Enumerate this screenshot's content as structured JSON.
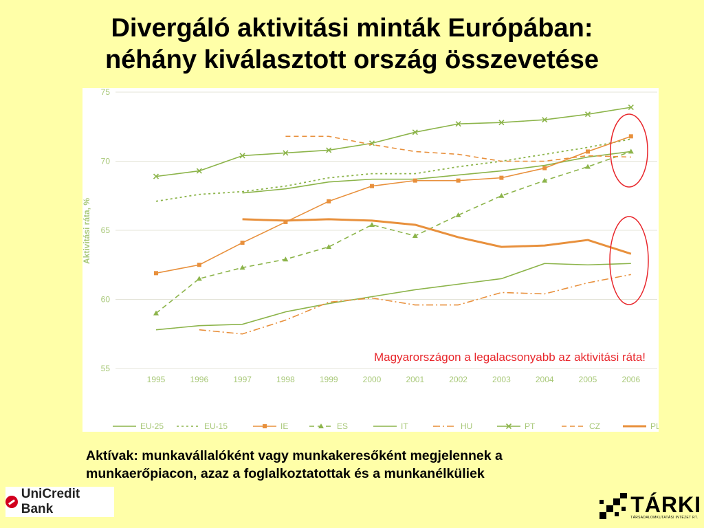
{
  "title": {
    "line1": "Divergáló aktivitási minták Európában:",
    "line2": "néhány kiválasztott ország összevetése"
  },
  "annotation": "Magyarországon a legalacsonyabb az aktivitási ráta!",
  "note": {
    "line1": "Aktívak: munkavállalóként vagy munkakeresőként megjelennek a",
    "line2": "munkaerőpiacon, azaz a foglalkoztatottak és a munkanélküliek"
  },
  "logos": {
    "left": "UniCredit Bank",
    "right": "TÁRKI",
    "right_sub": "TÁRSADALOMKUTATÁSI INTÉZET RT."
  },
  "colors": {
    "green": "#8cb44a",
    "orange": "#e8903c",
    "axis_text": "#a8c878",
    "grid": "#e4e4d8",
    "highlight": "#e8262b"
  },
  "chart_data": {
    "type": "line",
    "title": "",
    "xlabel": "",
    "ylabel": "Aktivitási ráta, %",
    "ylim": [
      55,
      75
    ],
    "yticks": [
      55,
      60,
      65,
      70,
      75
    ],
    "grid": true,
    "legend": "bottom",
    "x": [
      "1995",
      "1996",
      "1997",
      "1998",
      "1999",
      "2000",
      "2001",
      "2002",
      "2003",
      "2004",
      "2005",
      "2006"
    ],
    "series": [
      {
        "name": "EU-25",
        "color": "green",
        "style": "solid",
        "marker": "none",
        "values": [
          null,
          null,
          67.7,
          68.0,
          68.5,
          68.7,
          68.7,
          69.0,
          69.3,
          69.7,
          70.3,
          70.7
        ]
      },
      {
        "name": "EU-15",
        "color": "green",
        "style": "dotted",
        "marker": "none",
        "values": [
          67.1,
          67.6,
          67.8,
          68.2,
          68.8,
          69.1,
          69.1,
          69.6,
          70.0,
          70.5,
          71.0,
          71.6
        ]
      },
      {
        "name": "IE",
        "color": "orange",
        "style": "solid",
        "marker": "square",
        "values": [
          61.9,
          62.5,
          64.1,
          65.6,
          67.1,
          68.2,
          68.6,
          68.6,
          68.8,
          69.5,
          70.7,
          71.8
        ]
      },
      {
        "name": "ES",
        "color": "green",
        "style": "dashed",
        "marker": "triangle",
        "values": [
          59.0,
          61.5,
          62.3,
          62.9,
          63.8,
          65.4,
          64.6,
          66.1,
          67.5,
          68.6,
          69.6,
          70.7
        ]
      },
      {
        "name": "IT",
        "color": "green",
        "style": "solid",
        "marker": "none",
        "values": [
          57.8,
          58.1,
          58.2,
          59.1,
          59.7,
          60.2,
          60.7,
          61.1,
          61.5,
          62.6,
          62.5,
          62.6
        ]
      },
      {
        "name": "HU",
        "color": "orange",
        "style": "dashdot",
        "marker": "none",
        "values": [
          null,
          57.8,
          57.5,
          58.5,
          59.8,
          60.1,
          59.6,
          59.6,
          60.5,
          60.4,
          61.2,
          61.8
        ]
      },
      {
        "name": "PT",
        "color": "green",
        "style": "solid",
        "marker": "x",
        "values": [
          68.9,
          69.3,
          70.4,
          70.6,
          70.8,
          71.3,
          72.1,
          72.7,
          72.8,
          73.0,
          73.4,
          73.9
        ]
      },
      {
        "name": "CZ",
        "color": "orange",
        "style": "dashed",
        "marker": "none",
        "values": [
          null,
          null,
          null,
          71.8,
          71.8,
          71.2,
          70.7,
          70.5,
          70.0,
          70.0,
          70.4,
          70.3
        ]
      },
      {
        "name": "PL",
        "color": "orange",
        "style": "thick",
        "marker": "none",
        "values": [
          null,
          null,
          65.8,
          65.7,
          65.8,
          65.7,
          65.4,
          64.5,
          63.8,
          63.9,
          64.3,
          63.3
        ]
      }
    ]
  }
}
